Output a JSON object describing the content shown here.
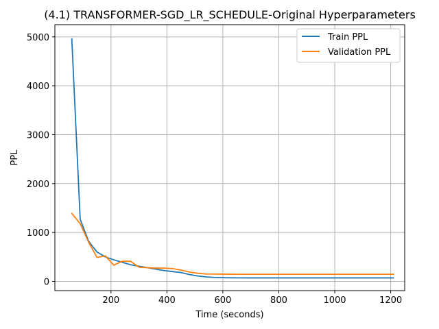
{
  "chart_data": {
    "type": "line",
    "title": "(4.1) TRANSFORMER-SGD_LR_SCHEDULE-Original Hyperparameters",
    "xlabel": "Time (seconds)",
    "ylabel": "PPL",
    "xlim": [
      -0.5,
      1250
    ],
    "ylim": [
      -190,
      5250
    ],
    "xticks": [
      200,
      400,
      600,
      800,
      1000,
      1200
    ],
    "yticks": [
      0,
      1000,
      2000,
      3000,
      4000,
      5000
    ],
    "grid": true,
    "legend_position": "top-right",
    "series": [
      {
        "name": "Train PPL",
        "color": "#1f77b4",
        "x": [
          60,
          90,
          120,
          150,
          180,
          210,
          240,
          270,
          300,
          330,
          360,
          390,
          420,
          450,
          480,
          510,
          540,
          570,
          600,
          630,
          660,
          690,
          720,
          750,
          780,
          810,
          840,
          870,
          900,
          930,
          960,
          990,
          1020,
          1050,
          1080,
          1110,
          1140,
          1170,
          1200,
          1210
        ],
        "values": [
          4960,
          1270,
          820,
          600,
          500,
          440,
          390,
          340,
          310,
          280,
          250,
          220,
          200,
          180,
          140,
          110,
          90,
          80,
          75,
          72,
          71,
          70,
          70,
          70,
          70,
          70,
          70,
          70,
          70,
          70,
          70,
          70,
          70,
          70,
          70,
          70,
          70,
          70,
          70,
          70
        ]
      },
      {
        "name": "Validation PPL",
        "color": "#ff7f0e",
        "x": [
          60,
          90,
          120,
          150,
          180,
          210,
          240,
          270,
          300,
          330,
          360,
          390,
          420,
          450,
          480,
          510,
          540,
          570,
          600,
          630,
          660,
          690,
          720,
          750,
          780,
          810,
          840,
          870,
          900,
          930,
          960,
          990,
          1020,
          1050,
          1080,
          1110,
          1140,
          1170,
          1200,
          1210
        ],
        "values": [
          1390,
          1180,
          800,
          490,
          520,
          330,
          410,
          410,
          290,
          280,
          270,
          270,
          260,
          230,
          190,
          165,
          150,
          148,
          147,
          146,
          145,
          145,
          145,
          145,
          145,
          145,
          145,
          145,
          145,
          145,
          145,
          145,
          145,
          145,
          145,
          145,
          145,
          145,
          145,
          145
        ]
      }
    ]
  }
}
